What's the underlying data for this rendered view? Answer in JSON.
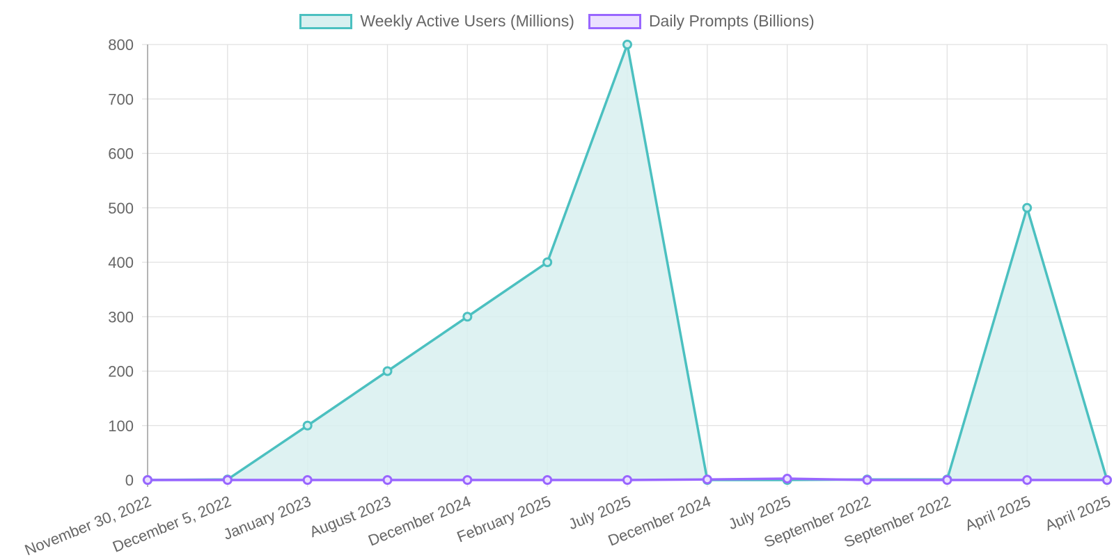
{
  "chart_data": {
    "type": "area",
    "categories": [
      "November 30, 2022",
      "December 5, 2022",
      "January 2023",
      "August 2023",
      "December 2024",
      "February 2025",
      "July 2025",
      "December 2024",
      "July 2025",
      "September 2022",
      "September 2022",
      "April 2025",
      "April 2025"
    ],
    "series": [
      {
        "name": "Weekly Active Users (Millions)",
        "color": "#4bc0c0",
        "fill": "#d8f0f0",
        "values": [
          0,
          1,
          100,
          200,
          300,
          400,
          800,
          0,
          0,
          1,
          1,
          500,
          0
        ]
      },
      {
        "name": "Daily Prompts (Billions)",
        "color": "#9966ff",
        "fill": "#ebe0ff",
        "values": [
          0,
          0,
          0,
          0,
          0,
          0,
          0,
          1,
          2.5,
          0,
          0,
          0,
          0
        ]
      }
    ],
    "ylim": [
      0,
      800
    ],
    "yticks": [
      "0",
      "100",
      "200",
      "300",
      "400",
      "500",
      "600",
      "700",
      "800"
    ],
    "xlabel": "",
    "ylabel": "",
    "grid": true,
    "legend_position": "top-center"
  }
}
